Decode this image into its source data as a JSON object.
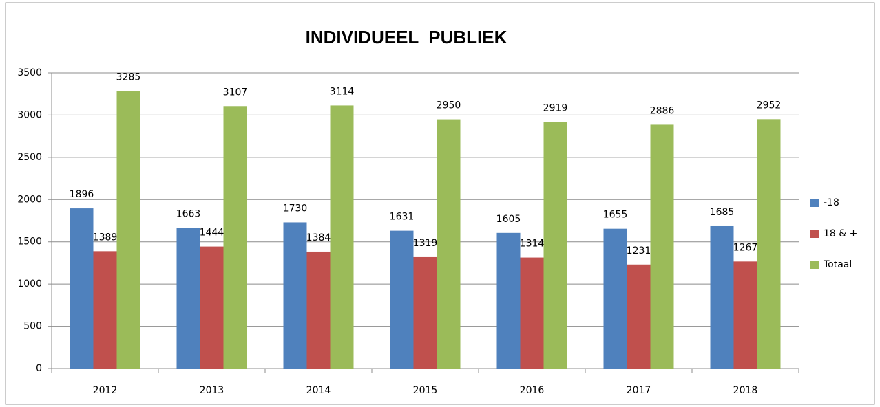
{
  "chart_data": {
    "type": "bar",
    "title": "INDIVIDUEEL  PUBLIEK",
    "categories": [
      "2012",
      "2013",
      "2014",
      "2015",
      "2016",
      "2017",
      "2018"
    ],
    "series": [
      {
        "name": "-18",
        "color": "#4f81bd",
        "values": [
          1896,
          1663,
          1730,
          1631,
          1605,
          1655,
          1685
        ]
      },
      {
        "name": "18 & +",
        "color": "#c0504d",
        "values": [
          1389,
          1444,
          1384,
          1319,
          1314,
          1231,
          1267
        ]
      },
      {
        "name": "Totaal",
        "color": "#9bbb59",
        "values": [
          3285,
          3107,
          3114,
          2950,
          2919,
          2886,
          2952
        ]
      }
    ],
    "ylim": [
      0,
      3500
    ],
    "yticks": [
      0,
      500,
      1000,
      1500,
      2000,
      2500,
      3000,
      3500
    ],
    "grid": true,
    "legend": "right"
  }
}
